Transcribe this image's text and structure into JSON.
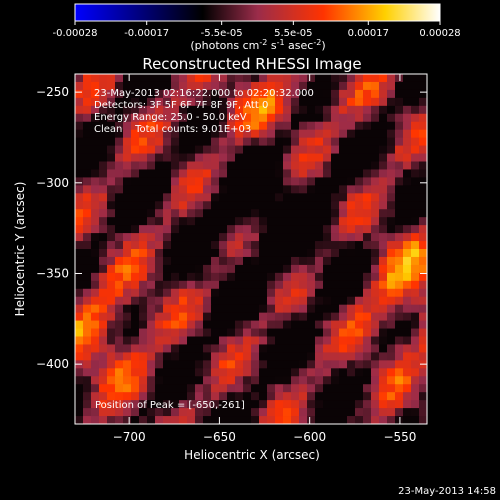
{
  "chart_data": {
    "type": "heatmap",
    "title": "Reconstructed RHESSI Image",
    "xlabel": "Heliocentric X (arcsec)",
    "ylabel": "Heliocentric Y (arcsec)",
    "xlim": [
      -730,
      -535
    ],
    "ylim": [
      -433,
      -240
    ],
    "x_ticks": [
      -700,
      -650,
      -600,
      -550
    ],
    "y_ticks": [
      -250,
      -300,
      -350,
      -400
    ],
    "grid": false,
    "colorbar": {
      "range": [
        -0.00028,
        0.00028
      ],
      "tick_values": [
        -0.00028,
        -0.00017,
        -5.5e-05,
        5.5e-05,
        0.00017,
        0.00028
      ],
      "tick_labels": [
        "-0.00028",
        "-0.00017",
        "-5.5e-05",
        "5.5e-05",
        "0.00017",
        "0.00028"
      ],
      "label_main": "(photons cm",
      "label_sup1": "-2",
      "label_mid": " s",
      "label_sup2": "-1",
      "label_end": " asec",
      "label_sup3": "-2",
      "label_close": ")",
      "colors": [
        "#0000ff",
        "#000000",
        "#9a2c4a",
        "#ff3300",
        "#ffd000",
        "#ffffff"
      ]
    },
    "annotations": [
      "23-May-2013 02:16:22.000 to 02:20:32.000",
      "Detectors: 3F 5F 6F 7F 8F 9F, Att 0",
      "Energy Range: 25.0 - 50.0 keV",
      "Clean    Total counts: 9.01E+03"
    ],
    "peak_label": "Position of Peak = [-650,-261]",
    "peak": [
      -650,
      -261
    ]
  },
  "footer_timestamp": "23-May-2013 14:58"
}
